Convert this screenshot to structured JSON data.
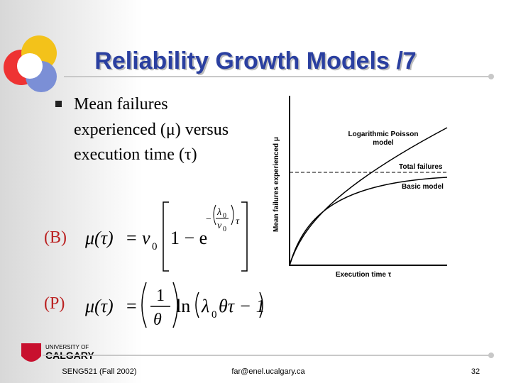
{
  "header": {
    "title": "Reliability Growth Models /7"
  },
  "bullet": {
    "lines": [
      "Mean failures",
      "experienced (μ) versus",
      "execution time (τ)"
    ]
  },
  "figure": {
    "y_axis_label": "Mean failures experienced μ",
    "x_axis_label": "Execution time τ",
    "curve_labels": [
      "Logarithmic Poisson",
      "model",
      "Total failures",
      "Basic model"
    ]
  },
  "formula_b": {
    "label": "(B)",
    "lhs": "μ(τ)",
    "eq": "=",
    "v": "ν",
    "v_sub": "0",
    "one_minus_e": "1 − e",
    "minus": "−",
    "lambda": "λ",
    "lambda_sub": "0",
    "nu": "ν",
    "nu_sub": "0",
    "tau": "τ"
  },
  "formula_p": {
    "label": "(P)",
    "lhs": "μ(τ)",
    "eq": "=",
    "num": "1",
    "den": "θ",
    "ln": "ln",
    "lambda": "λ",
    "lambda_sub": "0",
    "rest": "θτ − 1"
  },
  "logo": {
    "line1": "UNIVERSITY OF",
    "line2": "CALGARY"
  },
  "footer": {
    "course": "SENG521 (Fall 2002)",
    "email": "far@enel.ucalgary.ca",
    "page": "32"
  }
}
